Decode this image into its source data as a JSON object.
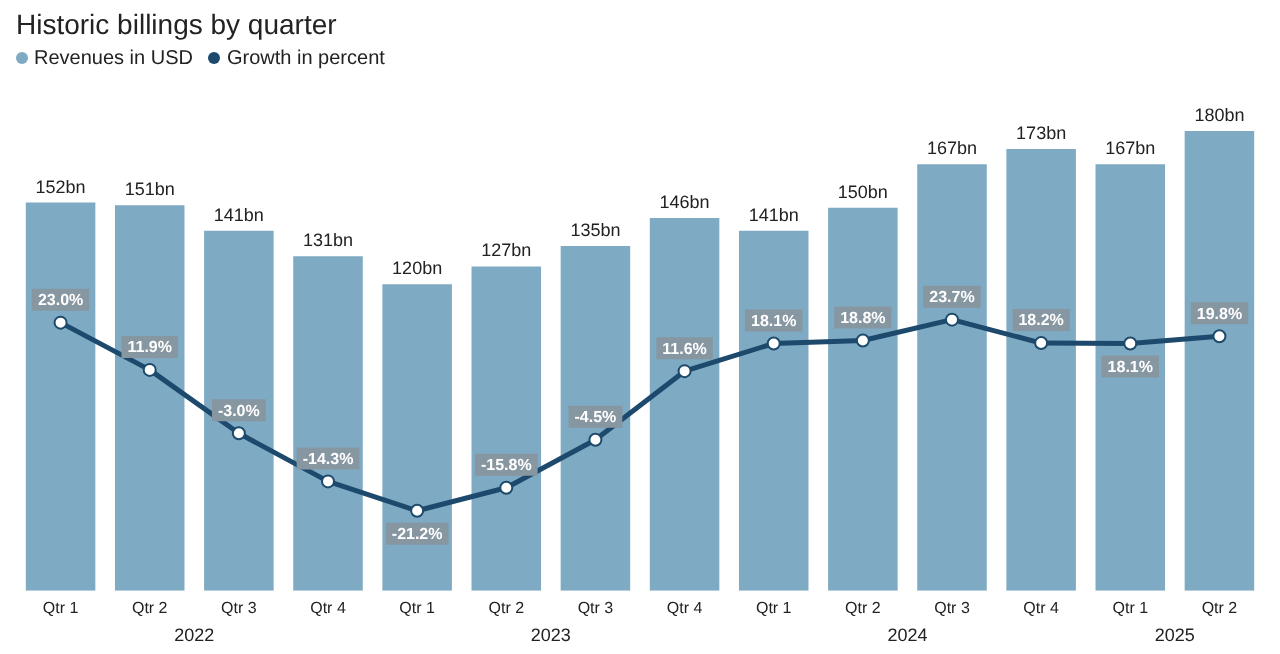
{
  "chart_data": {
    "type": "bar",
    "title": "Historic billings by quarter",
    "categories": [
      "Qtr 1",
      "Qtr 2",
      "Qtr 3",
      "Qtr 4",
      "Qtr 1",
      "Qtr 2",
      "Qtr 3",
      "Qtr 4",
      "Qtr 1",
      "Qtr 2",
      "Qtr 3",
      "Qtr 4",
      "Qtr 1",
      "Qtr 2"
    ],
    "series": [
      {
        "name": "Revenues in USD",
        "color": "#7eaac3",
        "values": [
          152,
          151,
          141,
          131,
          120,
          127,
          135,
          146,
          141,
          150,
          167,
          173,
          167,
          180
        ],
        "value_labels": [
          "152bn",
          "151bn",
          "141bn",
          "131bn",
          "120bn",
          "127bn",
          "135bn",
          "146bn",
          "141bn",
          "150bn",
          "167bn",
          "173bn",
          "167bn",
          "180bn"
        ]
      },
      {
        "name": "Growth in percent",
        "type": "line",
        "axis": "y2",
        "color": "#1d4a6c",
        "values": [
          23.0,
          11.9,
          -3.0,
          -14.3,
          -21.2,
          -15.8,
          -4.5,
          11.6,
          18.1,
          18.8,
          23.7,
          18.2,
          18.1,
          19.8
        ],
        "value_labels": [
          "23.0%",
          "11.9%",
          "-3.0%",
          "-14.3%",
          "-21.2%",
          "-15.8%",
          "-4.5%",
          "11.6%",
          "18.1%",
          "18.8%",
          "23.7%",
          "18.2%",
          "18.1%",
          "19.8%"
        ]
      }
    ],
    "tick_labels": "x",
    "grid": false,
    "legend": "top left",
    "marker": "circle",
    "line_style": "solid",
    "annotations": [
      "2022",
      "2023",
      "2024",
      "2025"
    ]
  }
}
